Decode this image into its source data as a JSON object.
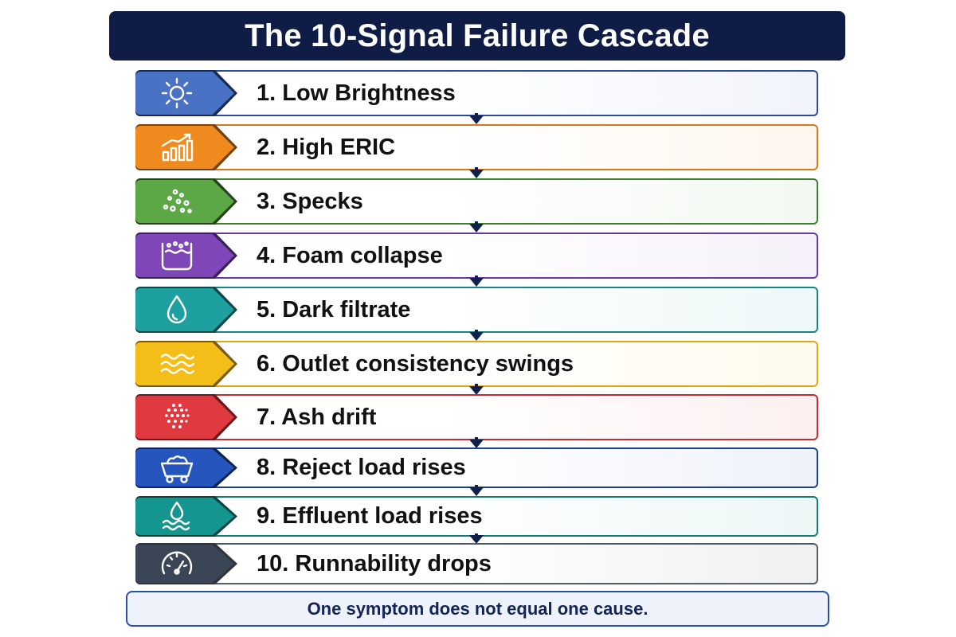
{
  "title": "The 10-Signal Failure Cascade",
  "steps": [
    {
      "label": "1. Low Brightness",
      "icon": "sun-icon",
      "color": "#4a72c4",
      "border": "#2a4a9a"
    },
    {
      "label": "2. High ERIC",
      "icon": "bar-chart-trend-icon",
      "color": "#ef8a1f",
      "border": "#d9771a"
    },
    {
      "label": "3. Specks",
      "icon": "specks-dots-icon",
      "color": "#5ca746",
      "border": "#3f7e2e"
    },
    {
      "label": "4. Foam collapse",
      "icon": "foam-container-icon",
      "color": "#7e46b6",
      "border": "#6a3aa0"
    },
    {
      "label": "5. Dark filtrate",
      "icon": "water-drop-icon",
      "color": "#1e9fa0",
      "border": "#178486"
    },
    {
      "label": "6. Outlet consistency swings",
      "icon": "waves-icon",
      "color": "#f5bd18",
      "border": "#e0a815"
    },
    {
      "label": "7. Ash drift",
      "icon": "ash-particles-icon",
      "color": "#e03a40",
      "border": "#c42c33"
    },
    {
      "label": "8. Reject load rises",
      "icon": "mine-cart-icon",
      "color": "#2656bd",
      "border": "#1c3f95"
    },
    {
      "label": "9. Effluent load rises",
      "icon": "drop-over-water-icon",
      "color": "#15958f",
      "border": "#137c78"
    },
    {
      "label": "10. Runnability drops",
      "icon": "gauge-icon",
      "color": "#3a4556",
      "border": "#555d6a"
    }
  ],
  "footer": "One symptom does not equal one cause."
}
